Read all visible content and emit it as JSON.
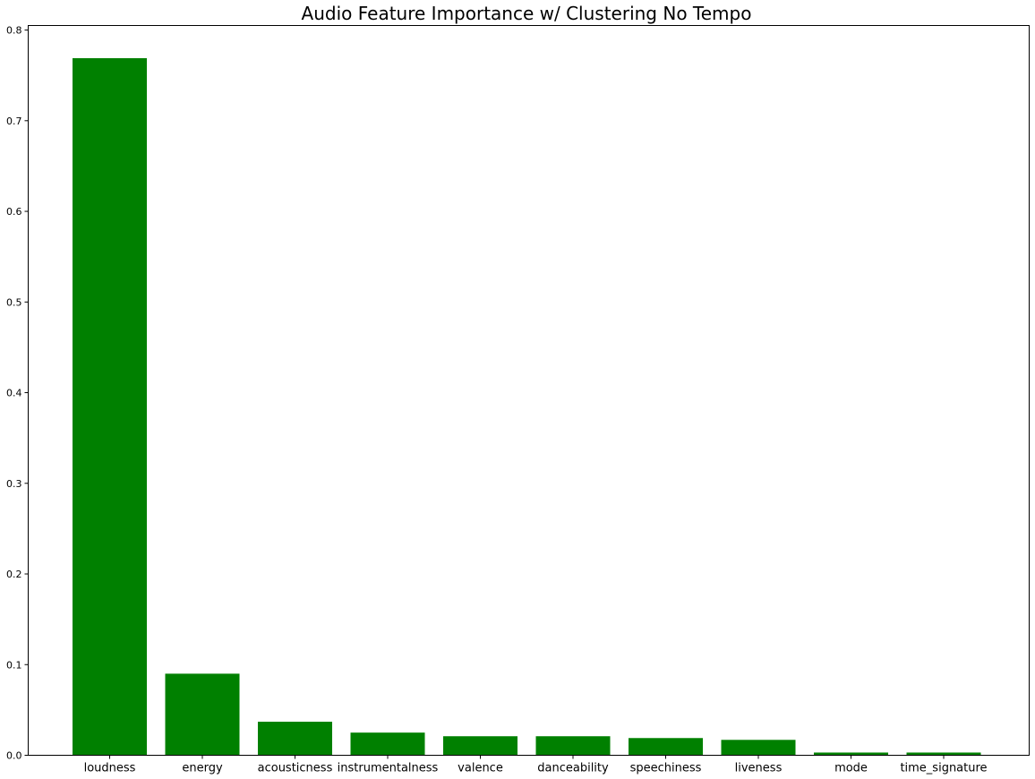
{
  "chart_data": {
    "type": "bar",
    "title": "Audio Feature Importance w/ Clustering No Tempo",
    "xlabel": "",
    "ylabel": "",
    "categories": [
      "loudness",
      "energy",
      "acousticness",
      "instrumentalness",
      "valence",
      "danceability",
      "speechiness",
      "liveness",
      "mode",
      "time_signature"
    ],
    "values": [
      0.769,
      0.09,
      0.037,
      0.025,
      0.021,
      0.021,
      0.019,
      0.017,
      0.003,
      0.003
    ],
    "ylim": [
      0,
      0.805
    ],
    "yticks": [
      "0.0",
      "0.1",
      "0.2",
      "0.3",
      "0.4",
      "0.5",
      "0.6",
      "0.7",
      "0.8"
    ],
    "grid": false,
    "legend": "none",
    "bar_color": "#008000"
  }
}
